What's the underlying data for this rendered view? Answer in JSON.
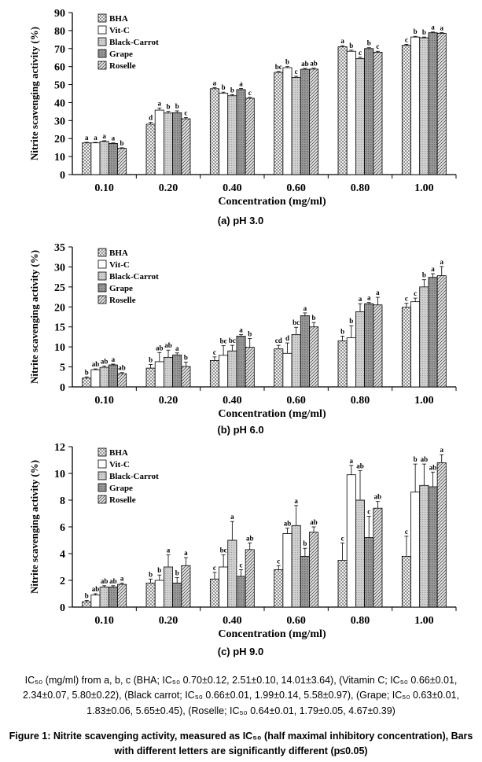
{
  "chart_data": [
    {
      "type": "bar",
      "caption": "(a) pH 3.0",
      "xlabel": "Concentration (mg/ml)",
      "ylabel": "Nitrite scavenging activity (%)",
      "categories": [
        "0.10",
        "0.20",
        "0.40",
        "0.60",
        "0.80",
        "1.00"
      ],
      "ylim": [
        0,
        90
      ],
      "yticks": [
        0,
        10,
        20,
        30,
        40,
        50,
        60,
        70,
        80,
        90
      ],
      "legend_position": "top-left",
      "series": [
        {
          "name": "BHA",
          "values": [
            17.6,
            28.0,
            47.7,
            56.8,
            71.0,
            71.8
          ],
          "errors": [
            0.3,
            1.0,
            0.6,
            0.5,
            0.6,
            0.5
          ],
          "letters": [
            "a",
            "d",
            "a",
            "bc",
            "a",
            "c"
          ]
        },
        {
          "name": "Vit-C",
          "values": [
            17.6,
            35.8,
            45.2,
            59.4,
            68.5,
            76.4
          ],
          "errors": [
            0.3,
            1.2,
            0.6,
            0.6,
            0.6,
            0.4
          ],
          "letters": [
            "a",
            "a",
            "b",
            "b",
            "b",
            "b"
          ]
        },
        {
          "name": "Black-Carrot",
          "values": [
            18.4,
            34.2,
            43.8,
            54.0,
            64.5,
            76.0
          ],
          "errors": [
            0.4,
            0.9,
            0.6,
            0.6,
            0.7,
            0.4
          ],
          "letters": [
            "a",
            "b",
            "b",
            "c",
            "c",
            "b"
          ]
        },
        {
          "name": "Grape",
          "values": [
            17.3,
            34.4,
            47.2,
            58.5,
            70.0,
            78.8
          ],
          "errors": [
            0.3,
            1.0,
            0.6,
            0.5,
            0.5,
            0.4
          ],
          "letters": [
            "a",
            "b",
            "a",
            "ab",
            "b",
            "a"
          ]
        },
        {
          "name": "Roselle",
          "values": [
            14.6,
            31.0,
            42.4,
            58.6,
            68.0,
            78.5
          ],
          "errors": [
            0.3,
            0.7,
            0.5,
            0.5,
            0.5,
            0.4
          ],
          "letters": [
            "b",
            "c",
            "c",
            "ab",
            "c",
            "a"
          ]
        }
      ]
    },
    {
      "type": "bar",
      "caption": "(b) pH 6.0",
      "xlabel": "Concentration (mg/ml)",
      "ylabel": "Nitrite scavenging activity (%)",
      "categories": [
        "0.10",
        "0.20",
        "0.40",
        "0.60",
        "0.80",
        "1.00"
      ],
      "ylim": [
        0,
        35
      ],
      "yticks": [
        0,
        5,
        10,
        15,
        20,
        25,
        30,
        35
      ],
      "legend_position": "top-left",
      "series": [
        {
          "name": "BHA",
          "values": [
            2.2,
            4.7,
            6.6,
            9.5,
            11.5,
            19.9
          ],
          "errors": [
            0.3,
            0.9,
            0.9,
            0.9,
            1.2,
            1.0
          ],
          "letters": [
            "b",
            "b",
            "c",
            "cd",
            "b",
            "c"
          ]
        },
        {
          "name": "Vit-C",
          "values": [
            4.3,
            6.3,
            7.9,
            8.4,
            12.3,
            21.3
          ],
          "errors": [
            0.2,
            2.3,
            2.4,
            2.6,
            3.0,
            0.9
          ],
          "letters": [
            "ab",
            "ab",
            "bc",
            "d",
            "b",
            "c"
          ]
        },
        {
          "name": "Black-Carrot",
          "values": [
            4.9,
            7.4,
            9.0,
            13.1,
            18.8,
            25.0
          ],
          "errors": [
            0.3,
            1.8,
            1.4,
            1.8,
            2.0,
            1.8
          ],
          "letters": [
            "ab",
            "ab",
            "bc",
            "bc",
            "a",
            "b"
          ]
        },
        {
          "name": "Grape",
          "values": [
            5.5,
            8.0,
            12.7,
            17.8,
            20.8,
            27.4
          ],
          "errors": [
            0.2,
            0.5,
            0.4,
            0.7,
            0.3,
            0.9
          ],
          "letters": [
            "a",
            "a",
            "a",
            "a",
            "a",
            "a"
          ]
        },
        {
          "name": "Roselle",
          "values": [
            3.3,
            5.1,
            9.9,
            15.0,
            20.5,
            27.8
          ],
          "errors": [
            0.3,
            1.1,
            2.2,
            1.1,
            1.9,
            2.3
          ],
          "letters": [
            "ab",
            "b",
            "b",
            "b",
            "a",
            "a"
          ]
        }
      ]
    },
    {
      "type": "bar",
      "caption": "(c) pH 9.0",
      "xlabel": "Concentration (mg/ml)",
      "ylabel": "Nitrite scavenging activity (%)",
      "categories": [
        "0.10",
        "0.20",
        "0.40",
        "0.60",
        "0.80",
        "1.00"
      ],
      "ylim": [
        0,
        12
      ],
      "yticks": [
        0,
        2,
        4,
        6,
        8,
        10,
        12
      ],
      "legend_position": "top-left",
      "series": [
        {
          "name": "BHA",
          "values": [
            0.4,
            1.8,
            2.1,
            2.8,
            3.5,
            3.8
          ],
          "errors": [
            0.1,
            0.3,
            0.5,
            0.3,
            1.3,
            1.5
          ],
          "letters": [
            "b",
            "b",
            "c",
            "c",
            "c",
            "c"
          ]
        },
        {
          "name": "Vit-C",
          "values": [
            0.9,
            2.0,
            3.0,
            5.5,
            9.9,
            8.6
          ],
          "errors": [
            0.1,
            0.4,
            0.9,
            0.4,
            0.7,
            2.1
          ],
          "letters": [
            "ab",
            "b",
            "bc",
            "ab",
            "a",
            "b"
          ]
        },
        {
          "name": "Black-Carrot",
          "values": [
            1.5,
            3.0,
            5.0,
            6.1,
            8.0,
            9.1
          ],
          "errors": [
            0.1,
            0.9,
            1.4,
            1.5,
            2.2,
            1.6
          ],
          "letters": [
            "ab",
            "a",
            "a",
            "a",
            "ab",
            "ab"
          ]
        },
        {
          "name": "Grape",
          "values": [
            1.5,
            1.8,
            2.3,
            3.8,
            5.2,
            9.0
          ],
          "errors": [
            0.1,
            0.4,
            0.5,
            0.6,
            1.6,
            1.1
          ],
          "letters": [
            "ab",
            "b",
            "c",
            "b",
            "c",
            "ab"
          ]
        },
        {
          "name": "Roselle",
          "values": [
            1.7,
            3.1,
            4.3,
            5.6,
            7.4,
            10.8
          ],
          "errors": [
            0.1,
            0.6,
            0.5,
            0.4,
            0.5,
            0.6
          ],
          "letters": [
            "a",
            "a",
            "ab",
            "ab",
            "ab",
            "a"
          ]
        }
      ]
    }
  ],
  "note": {
    "line1": "IC₅₀ (mg/ml) from a, b, c (BHA; IC₅₀ 0.70±0.12, 2.51±0.10, 14.01±3.64), (Vitamin C; IC₅₀ 0.66±0.01,",
    "line2": "2.34±0.07, 5.80±0.22), (Black carrot; IC₅₀ 0.66±0.01, 1.99±0.14, 5.58±0.97), (Grape; IC₅₀ 0.63±0.01,",
    "line3": "1.83±0.06, 5.65±0.45), (Roselle; IC₅₀ 0.64±0.01, 1.79±0.05, 4.67±0.39)"
  },
  "figure_caption": {
    "line1": "Figure 1: Nitrite scavenging activity, measured as IC₅₀ (half maximal inhibitory concentration), Bars",
    "line2": "with different letters are significantly different (p≤0.05)"
  },
  "colors": {
    "bar_outline": "#000000",
    "bha_fill": "crosshatch",
    "vitc_fill": "#ffffff",
    "black_carrot_fill": "#c8c8c8",
    "grape_fill": "#909090",
    "roselle_fill": "diagonal-hatch"
  }
}
